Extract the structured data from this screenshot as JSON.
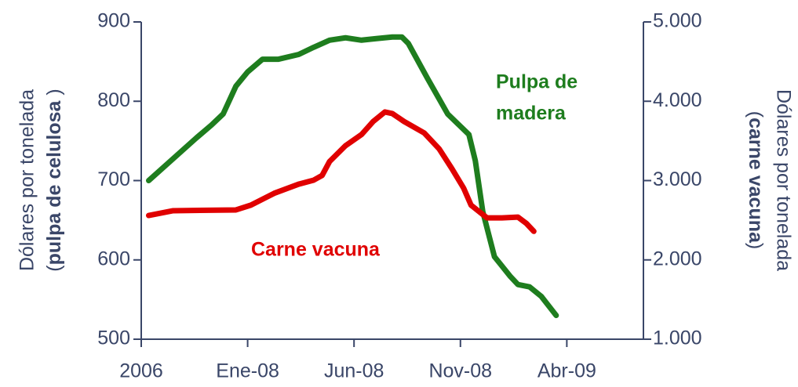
{
  "chart_data": {
    "type": "line",
    "categories_note_free": null,
    "ylabel": {
      "line1": "Dólares por tonelada",
      "line2": [
        "(",
        "pulpa de celulosa",
        " )"
      ]
    },
    "y2label": {
      "line1": "Dólares por tonelada",
      "line2": [
        "(",
        "carne vacuna",
        ")"
      ]
    },
    "xlim": [
      0,
      4.72
    ],
    "xticks": [
      {
        "value": 0,
        "label": "2006"
      },
      {
        "value": 1,
        "label": "Ene-08"
      },
      {
        "value": 2,
        "label": "Jun-08"
      },
      {
        "value": 3,
        "label": "Nov-08"
      },
      {
        "value": 4,
        "label": "Abr-09"
      }
    ],
    "ylim": [
      500,
      900
    ],
    "yticks": [
      500,
      600,
      700,
      800,
      900
    ],
    "y2lim": [
      1000,
      5000
    ],
    "y2ticks": [
      {
        "value": 1000,
        "label": "1.000"
      },
      {
        "value": 2000,
        "label": "2.000"
      },
      {
        "value": 3000,
        "label": "3.000"
      },
      {
        "value": 4000,
        "label": "4.000"
      },
      {
        "value": 5000,
        "label": "5.000"
      }
    ],
    "series": [
      {
        "name": "Pulpa de madera",
        "label_lines": [
          "Pulpa de",
          "madera"
        ],
        "color": "#1e7d1e",
        "axis": "y",
        "x": [
          0.07,
          0.52,
          0.66,
          0.77,
          0.89,
          1.0,
          1.14,
          1.29,
          1.48,
          1.62,
          1.77,
          1.92,
          2.07,
          2.21,
          2.36,
          2.45,
          2.51,
          2.69,
          2.88,
          3.08,
          3.14,
          3.21,
          3.32,
          3.47,
          3.54,
          3.65,
          3.76,
          3.9
        ],
        "values": [
          700,
          754,
          770,
          784,
          819,
          837,
          853,
          853,
          859,
          868,
          877,
          880,
          877,
          879,
          881,
          881,
          873,
          829,
          784,
          758,
          725,
          661,
          604,
          579,
          569,
          566,
          554,
          530
        ]
      },
      {
        "name": "Carne vacuna",
        "color": "#e00000",
        "axis": "y2",
        "x": [
          0.07,
          0.3,
          0.89,
          1.03,
          1.25,
          1.48,
          1.62,
          1.7,
          1.77,
          1.92,
          2.07,
          2.18,
          2.29,
          2.36,
          2.47,
          2.66,
          2.8,
          2.92,
          3.03,
          3.1,
          3.25,
          3.39,
          3.54,
          3.62,
          3.69
        ],
        "values": [
          2560,
          2620,
          2630,
          2690,
          2840,
          2955,
          3005,
          3065,
          3240,
          3440,
          3580,
          3745,
          3865,
          3845,
          3745,
          3600,
          3400,
          3150,
          2905,
          2690,
          2530,
          2530,
          2540,
          2460,
          2360
        ]
      }
    ]
  }
}
